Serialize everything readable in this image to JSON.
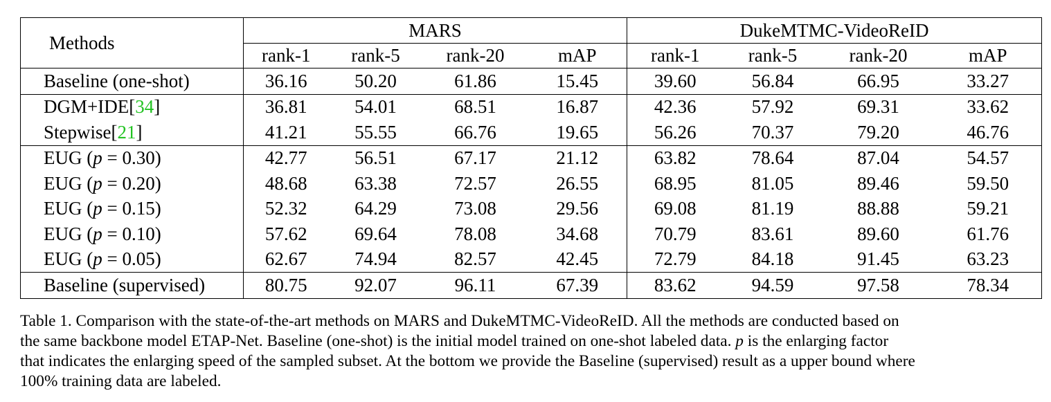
{
  "table": {
    "methods_header": "Methods",
    "groups": [
      "MARS",
      "DukeMTMC-VideoReID"
    ],
    "metrics": [
      "rank-1",
      "rank-5",
      "rank-20",
      "mAP"
    ],
    "rows": [
      {
        "method": "Baseline (one-shot)",
        "values": [
          "36.16",
          "50.20",
          "61.86",
          "15.45",
          "39.60",
          "56.84",
          "66.95",
          "33.27"
        ]
      },
      {
        "method": "DGM+IDE",
        "cite": "34",
        "values": [
          "36.81",
          "54.01",
          "68.51",
          "16.87",
          "42.36",
          "57.92",
          "69.31",
          "33.62"
        ]
      },
      {
        "method": "Stepwise",
        "cite": "21",
        "values": [
          "41.21",
          "55.55",
          "66.76",
          "19.65",
          "56.26",
          "70.37",
          "79.20",
          "46.76"
        ]
      },
      {
        "method": "EUG",
        "p": "0.30",
        "values": [
          "42.77",
          "56.51",
          "67.17",
          "21.12",
          "63.82",
          "78.64",
          "87.04",
          "54.57"
        ]
      },
      {
        "method": "EUG",
        "p": "0.20",
        "values": [
          "48.68",
          "63.38",
          "72.57",
          "26.55",
          "68.95",
          "81.05",
          "89.46",
          "59.50"
        ]
      },
      {
        "method": "EUG",
        "p": "0.15",
        "values": [
          "52.32",
          "64.29",
          "73.08",
          "29.56",
          "69.08",
          "81.19",
          "88.88",
          "59.21"
        ]
      },
      {
        "method": "EUG",
        "p": "0.10",
        "values": [
          "57.62",
          "69.64",
          "78.08",
          "34.68",
          "70.79",
          "83.61",
          "89.60",
          "61.76"
        ]
      },
      {
        "method": "EUG",
        "p": "0.05",
        "bold": true,
        "values": [
          "62.67",
          "74.94",
          "82.57",
          "42.45",
          "72.79",
          "84.18",
          "91.45",
          "63.23"
        ]
      },
      {
        "method": "Baseline (supervised)",
        "values": [
          "80.75",
          "92.07",
          "96.11",
          "67.39",
          "83.62",
          "94.59",
          "97.58",
          "78.34"
        ]
      }
    ]
  },
  "caption": {
    "lines": [
      "Table 1. Comparison with the state-of-the-art methods on MARS and DukeMTMC-VideoReID. All the methods are conducted based on",
      "the same backbone model ETAP-Net. Baseline (one-shot) is the initial model trained on one-shot labeled data. p is the enlarging factor",
      "that indicates the enlarging speed of the sampled subset. At the bottom we provide the Baseline (supervised) result as a upper bound where",
      "100% training data are labeled."
    ]
  }
}
